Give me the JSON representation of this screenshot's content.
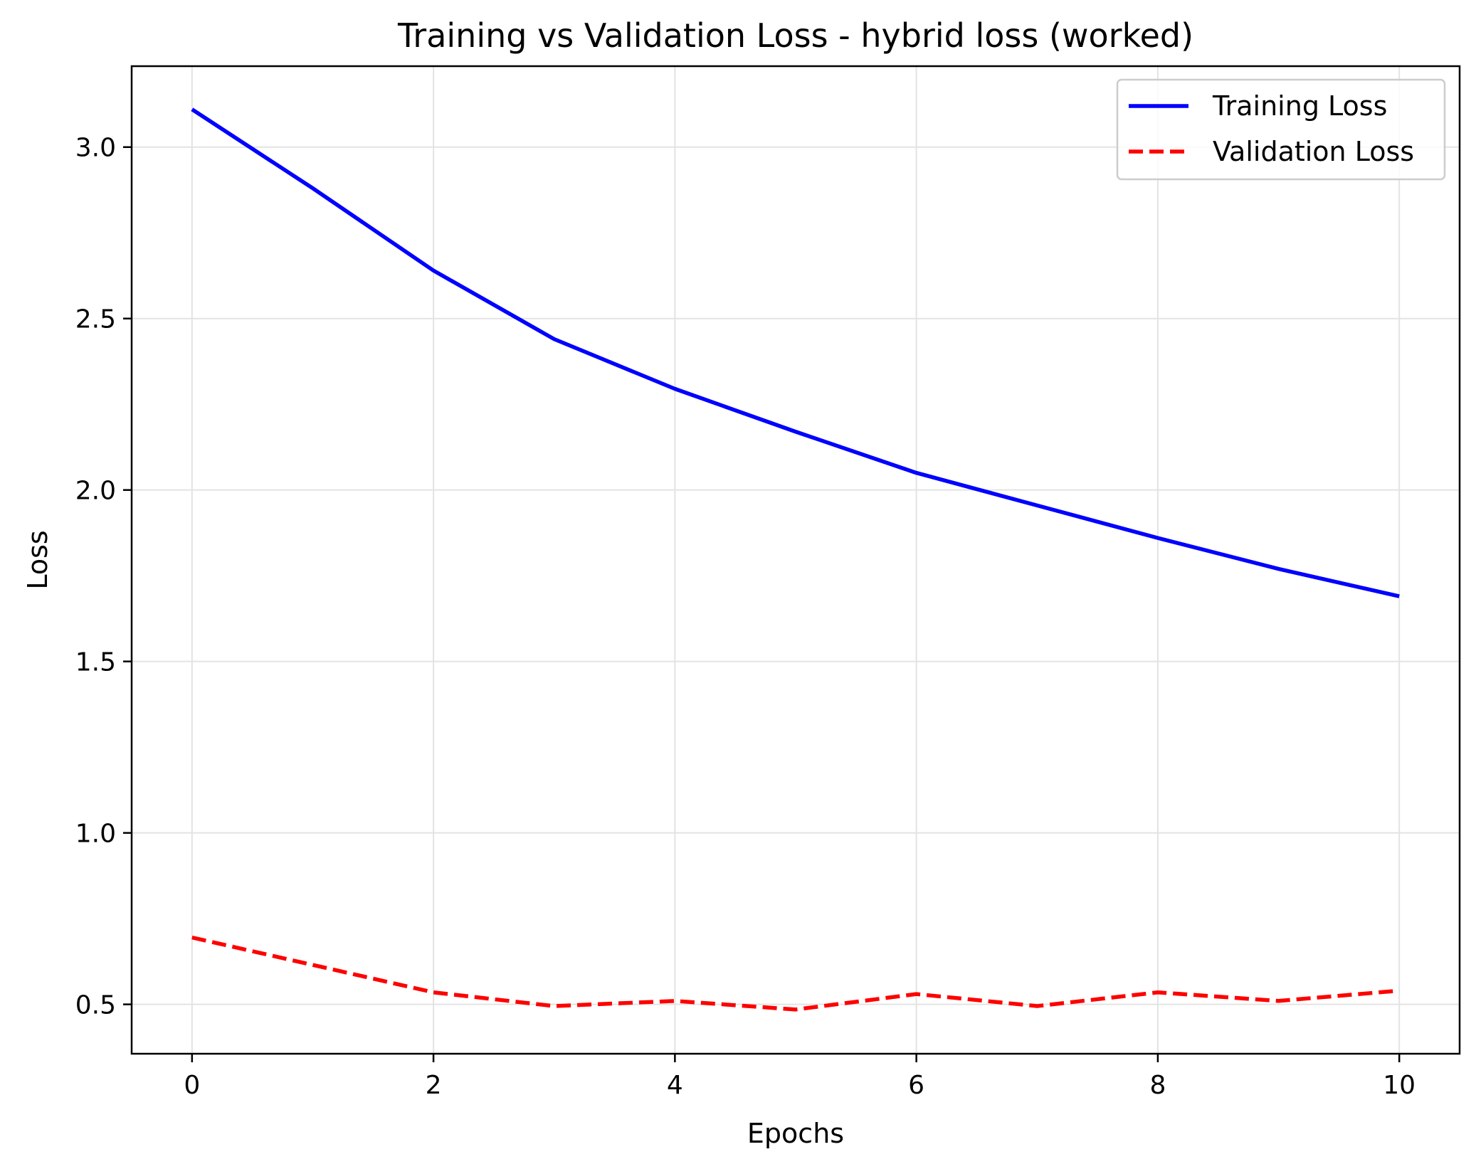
{
  "chart_data": {
    "type": "line",
    "title": "Training vs Validation Loss - hybrid loss (worked)",
    "xlabel": "Epochs",
    "ylabel": "Loss",
    "x": [
      0,
      1,
      2,
      3,
      4,
      5,
      6,
      7,
      8,
      9,
      10
    ],
    "xlim": [
      -0.5,
      10.5
    ],
    "ylim": [
      0.356,
      3.236
    ],
    "xticks": [
      0,
      2,
      4,
      6,
      8,
      10
    ],
    "xtick_labels": [
      "0",
      "2",
      "4",
      "6",
      "8",
      "10"
    ],
    "yticks": [
      0.5,
      1.0,
      1.5,
      2.0,
      2.5,
      3.0
    ],
    "ytick_labels": [
      "0.5",
      "1.0",
      "1.5",
      "2.0",
      "2.5",
      "3.0"
    ],
    "grid": true,
    "legend_position": "top-right",
    "series": [
      {
        "name": "Training Loss",
        "color": "#0000ff",
        "style": "solid",
        "values": [
          3.11,
          2.88,
          2.64,
          2.44,
          2.295,
          2.17,
          2.05,
          1.955,
          1.86,
          1.77,
          1.69
        ]
      },
      {
        "name": "Validation Loss",
        "color": "#ff0000",
        "style": "dashed",
        "values": [
          0.695,
          0.615,
          0.535,
          0.495,
          0.51,
          0.485,
          0.53,
          0.495,
          0.535,
          0.51,
          0.54
        ]
      }
    ]
  }
}
